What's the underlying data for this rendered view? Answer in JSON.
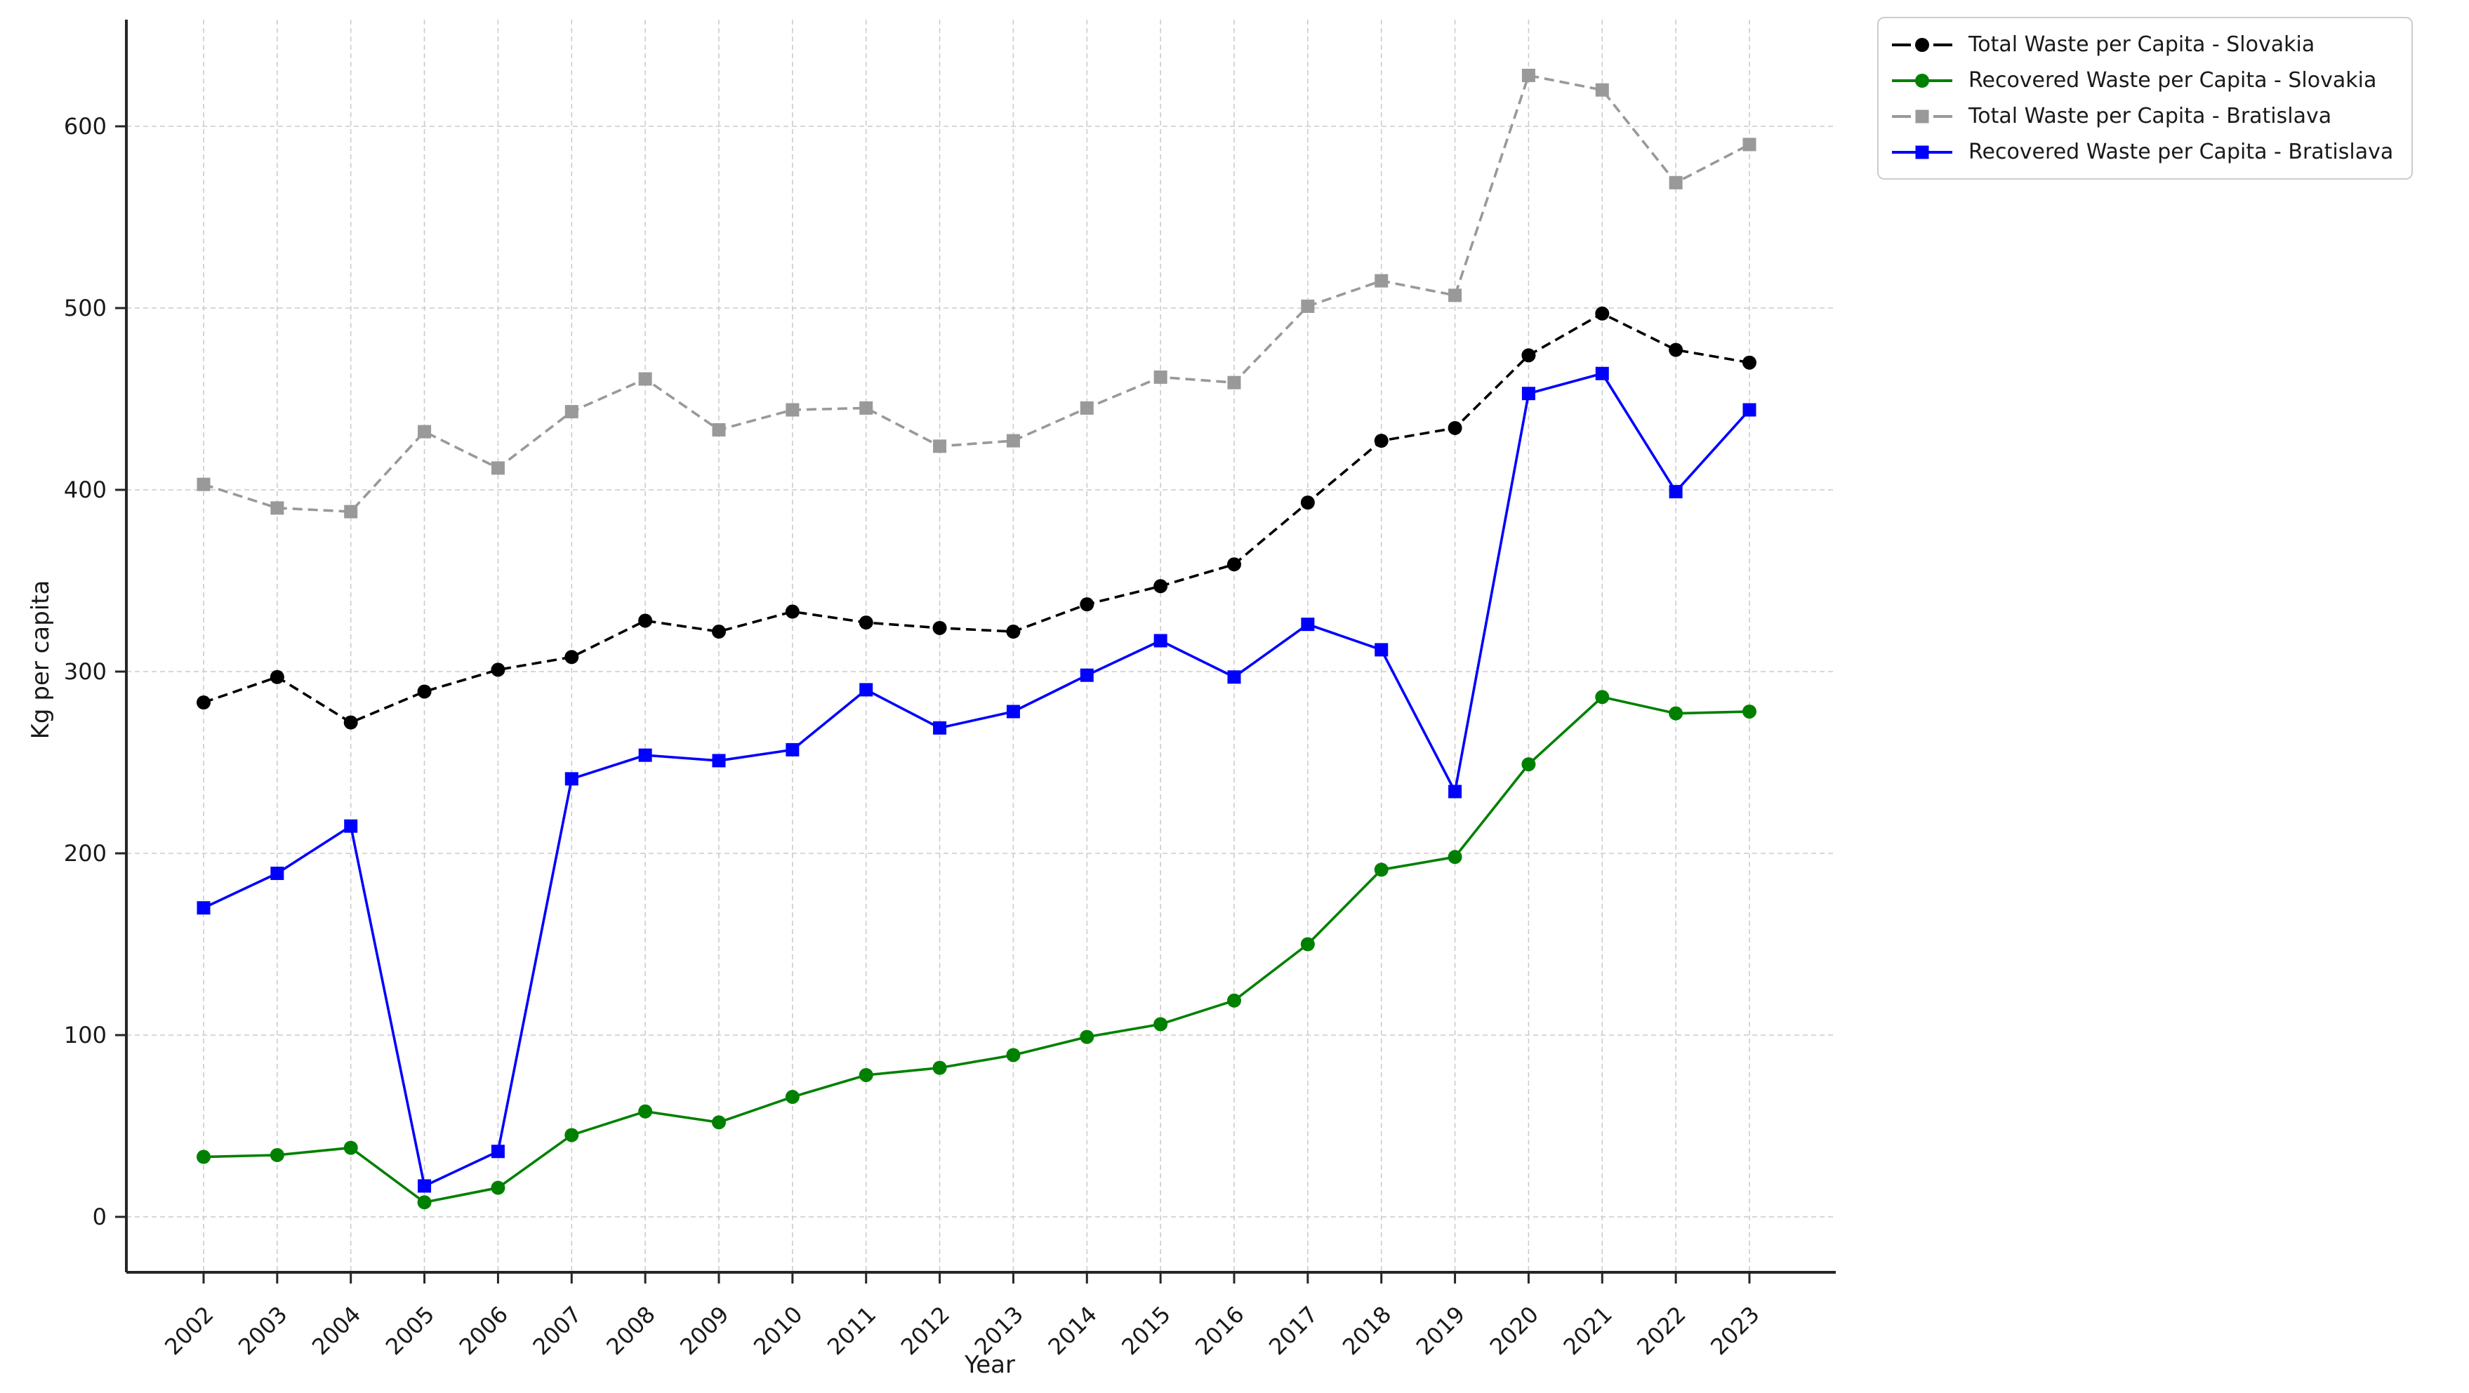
{
  "chart_data": {
    "type": "line",
    "title": "",
    "xlabel": "Year",
    "ylabel": "Kg per capita",
    "x": [
      2002,
      2003,
      2004,
      2005,
      2006,
      2007,
      2008,
      2009,
      2010,
      2011,
      2012,
      2013,
      2014,
      2015,
      2016,
      2017,
      2018,
      2019,
      2020,
      2021,
      2022,
      2023
    ],
    "yticks": [
      0,
      100,
      200,
      300,
      400,
      500,
      600
    ],
    "ylim": [
      -30,
      662
    ],
    "grid": true,
    "legend_position": "outside-top-right",
    "series": [
      {
        "name": "Total Waste per Capita - Slovakia",
        "color": "#000000",
        "line": "dashed",
        "marker": "circle",
        "values": [
          283,
          297,
          272,
          289,
          301,
          308,
          328,
          322,
          333,
          327,
          324,
          322,
          337,
          347,
          359,
          393,
          427,
          434,
          474,
          497,
          477,
          470
        ]
      },
      {
        "name": "Recovered Waste per Capita - Slovakia",
        "color": "#008000",
        "line": "solid",
        "marker": "circle",
        "values": [
          33,
          34,
          38,
          8,
          16,
          45,
          58,
          52,
          66,
          78,
          82,
          89,
          99,
          106,
          119,
          150,
          191,
          198,
          249,
          286,
          277,
          278
        ]
      },
      {
        "name": "Total Waste per Capita - Bratislava",
        "color": "#999999",
        "line": "dashed",
        "marker": "square",
        "values": [
          403,
          390,
          388,
          432,
          412,
          443,
          461,
          433,
          444,
          445,
          424,
          427,
          445,
          462,
          459,
          501,
          515,
          507,
          628,
          620,
          569,
          590
        ]
      },
      {
        "name": "Recovered Waste per Capita - Bratislava",
        "color": "#0000ff",
        "line": "solid",
        "marker": "square",
        "values": [
          170,
          189,
          215,
          17,
          36,
          241,
          254,
          251,
          257,
          290,
          269,
          278,
          298,
          317,
          297,
          326,
          312,
          234,
          453,
          464,
          399,
          444
        ]
      }
    ],
    "style": {
      "grid_color": "#cccccc",
      "spine_color": "#262626",
      "tick_label_color": "#1a1a1a",
      "background": "#ffffff"
    }
  }
}
